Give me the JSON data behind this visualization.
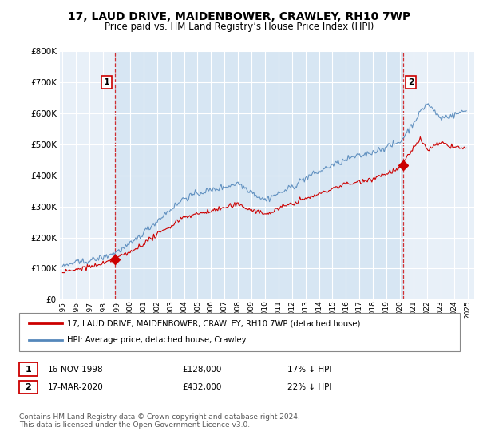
{
  "title": "17, LAUD DRIVE, MAIDENBOWER, CRAWLEY, RH10 7WP",
  "subtitle": "Price paid vs. HM Land Registry’s House Price Index (HPI)",
  "legend_line1": "17, LAUD DRIVE, MAIDENBOWER, CRAWLEY, RH10 7WP (detached house)",
  "legend_line2": "HPI: Average price, detached house, Crawley",
  "footer": "Contains HM Land Registry data © Crown copyright and database right 2024.\nThis data is licensed under the Open Government Licence v3.0.",
  "table_rows": [
    {
      "num": "1",
      "date": "16-NOV-1998",
      "price": "£128,000",
      "pct": "17% ↓ HPI"
    },
    {
      "num": "2",
      "date": "17-MAR-2020",
      "price": "£432,000",
      "pct": "22% ↓ HPI"
    }
  ],
  "sale1_x": 1998.88,
  "sale1_y": 128000,
  "sale2_x": 2020.21,
  "sale2_y": 432000,
  "red_color": "#cc0000",
  "blue_color": "#5588bb",
  "bg_color": "#ddeeff",
  "chart_bg": "#e8f0f8",
  "ylim": [
    0,
    800000
  ],
  "xlim": [
    1994.8,
    2025.5
  ]
}
